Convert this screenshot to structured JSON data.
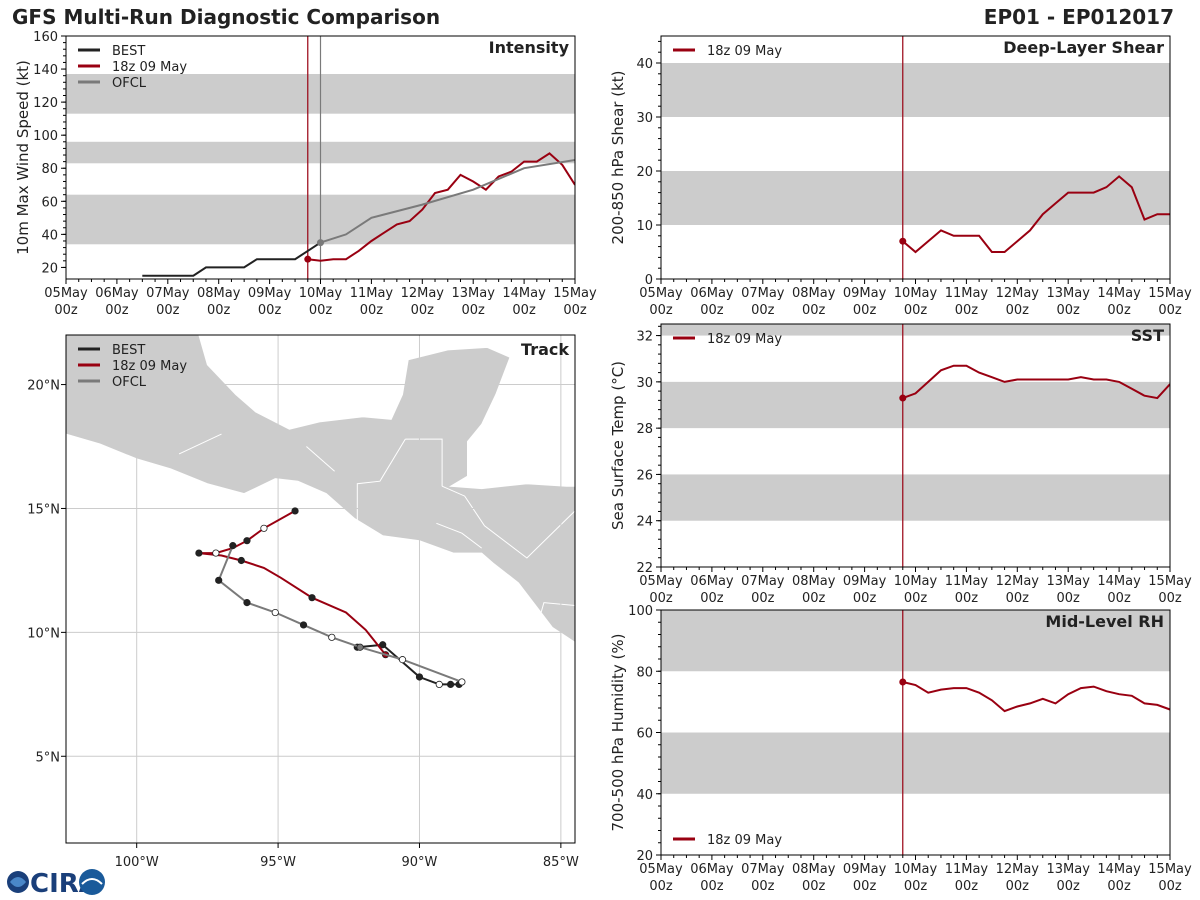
{
  "header": {
    "title": "GFS Multi-Run Diagnostic Comparison",
    "storm_id": "EP01 - EP012017"
  },
  "logo": {
    "text": "CIRA"
  },
  "colors": {
    "best": "#222222",
    "run": "#990011",
    "ofcl": "#7a7a7a",
    "band": "#cccccc",
    "land": "#cccccc",
    "grid": "#cccccc",
    "axis": "#000000"
  },
  "time_axis": {
    "ticks": [
      "05May",
      "06May",
      "07May",
      "08May",
      "09May",
      "10May",
      "11May",
      "12May",
      "13May",
      "14May",
      "15May"
    ],
    "hour_label": "00z",
    "xlim_days": [
      0,
      10
    ],
    "init_day": 4.75
  },
  "chart_data": [
    {
      "id": "intensity",
      "type": "line",
      "title": "Intensity",
      "ylabel": "10m Max Wind Speed (kt)",
      "ylim": [
        13,
        160
      ],
      "yticks": [
        20,
        40,
        60,
        80,
        100,
        120,
        140,
        160
      ],
      "bands": [
        [
          34,
          64
        ],
        [
          83,
          96
        ],
        [
          113,
          137
        ]
      ],
      "init_lines": [
        4.75,
        5.0
      ],
      "legend": [
        "BEST",
        "18z 09 May",
        "OFCL"
      ],
      "series": [
        {
          "name": "BEST",
          "color": "best",
          "x": [
            1.5,
            1.75,
            2.0,
            2.25,
            2.5,
            2.75,
            3.0,
            3.25,
            3.5,
            3.75,
            4.0,
            4.25,
            4.5,
            4.75,
            5.0
          ],
          "y": [
            15,
            15,
            15,
            15,
            15,
            20,
            20,
            20,
            20,
            25,
            25,
            25,
            25,
            30,
            35
          ]
        },
        {
          "name": "18z 09 May",
          "color": "run",
          "marker_start": true,
          "x": [
            4.75,
            5.0,
            5.25,
            5.5,
            5.75,
            6.0,
            6.25,
            6.5,
            6.75,
            7.0,
            7.25,
            7.5,
            7.75,
            8.0,
            8.25,
            8.5,
            8.75,
            9.0,
            9.25,
            9.5,
            9.75,
            10.0
          ],
          "y": [
            25,
            24,
            25,
            25,
            30,
            36,
            41,
            46,
            48,
            55,
            65,
            67,
            76,
            72,
            67,
            75,
            78,
            84,
            84,
            89,
            82,
            70
          ]
        },
        {
          "name": "OFCL",
          "color": "ofcl",
          "marker_start": true,
          "x": [
            5.0,
            5.5,
            6.0,
            7.0,
            8.0,
            9.0,
            10.0
          ],
          "y": [
            35,
            40,
            50,
            58,
            67,
            80,
            85
          ]
        }
      ]
    },
    {
      "id": "shear",
      "type": "line",
      "title": "Deep-Layer Shear",
      "ylabel": "200-850 hPa Shear (kt)",
      "ylim": [
        0,
        45
      ],
      "yticks": [
        0,
        10,
        20,
        30,
        40
      ],
      "bands": [
        [
          10,
          20
        ],
        [
          30,
          40
        ]
      ],
      "init_lines": [
        4.75
      ],
      "legend": [
        "18z 09 May"
      ],
      "series": [
        {
          "name": "18z 09 May",
          "color": "run",
          "marker_start": true,
          "x": [
            4.75,
            5.0,
            5.25,
            5.5,
            5.75,
            6.0,
            6.25,
            6.5,
            6.75,
            7.0,
            7.25,
            7.5,
            7.75,
            8.0,
            8.25,
            8.5,
            8.75,
            9.0,
            9.25,
            9.5,
            9.75,
            10.0
          ],
          "y": [
            7,
            5,
            7,
            9,
            8,
            8,
            8,
            5,
            5,
            7,
            9,
            12,
            14,
            16,
            16,
            16,
            17,
            19,
            17,
            11,
            12,
            12
          ]
        }
      ]
    },
    {
      "id": "sst",
      "type": "line",
      "title": "SST",
      "ylabel": "Sea Surface Temp (°C)",
      "ylim": [
        22,
        32.5
      ],
      "yticks": [
        22,
        24,
        26,
        28,
        30,
        32
      ],
      "bands": [
        [
          24,
          26
        ],
        [
          28,
          30
        ],
        [
          32,
          32.5
        ]
      ],
      "init_lines": [
        4.75
      ],
      "legend": [
        "18z 09 May"
      ],
      "series": [
        {
          "name": "18z 09 May",
          "color": "run",
          "marker_start": true,
          "x": [
            4.75,
            5.0,
            5.25,
            5.5,
            5.75,
            6.0,
            6.25,
            6.5,
            6.75,
            7.0,
            7.25,
            7.5,
            7.75,
            8.0,
            8.25,
            8.5,
            8.75,
            9.0,
            9.25,
            9.5,
            9.75,
            10.0
          ],
          "y": [
            29.3,
            29.5,
            30.0,
            30.5,
            30.7,
            30.7,
            30.4,
            30.2,
            30.0,
            30.1,
            30.1,
            30.1,
            30.1,
            30.1,
            30.2,
            30.1,
            30.1,
            30.0,
            29.7,
            29.4,
            29.3,
            29.9
          ]
        }
      ]
    },
    {
      "id": "rh",
      "type": "line",
      "title": "Mid-Level RH",
      "ylabel": "700-500 hPa Humidity (%)",
      "ylim": [
        20,
        100
      ],
      "yticks": [
        20,
        40,
        60,
        80,
        100
      ],
      "bands": [
        [
          40,
          60
        ],
        [
          80,
          100
        ]
      ],
      "init_lines": [
        4.75
      ],
      "legend": [
        "18z 09 May"
      ],
      "legend_position": "bottom-left",
      "series": [
        {
          "name": "18z 09 May",
          "color": "run",
          "marker_start": true,
          "x": [
            4.75,
            5.0,
            5.25,
            5.5,
            5.75,
            6.0,
            6.25,
            6.5,
            6.75,
            7.0,
            7.25,
            7.5,
            7.75,
            8.0,
            8.25,
            8.5,
            8.75,
            9.0,
            9.25,
            9.5,
            9.75,
            10.0
          ],
          "y": [
            76.5,
            75.5,
            73,
            74,
            74.5,
            74.5,
            73,
            70.5,
            67,
            68.5,
            69.5,
            71,
            69.5,
            72.5,
            74.5,
            75,
            73.5,
            72.5,
            72,
            69.5,
            69,
            67.5
          ]
        }
      ]
    },
    {
      "id": "track",
      "type": "scatter",
      "title": "Track",
      "xlim": [
        -102.5,
        -84.5
      ],
      "ylim": [
        1.5,
        22.0
      ],
      "xticks": [
        -100,
        -95,
        -90,
        -85
      ],
      "xtick_labels": [
        "100°W",
        "95°W",
        "90°W",
        "85°W"
      ],
      "yticks": [
        5,
        10,
        15,
        20
      ],
      "ytick_labels": [
        "5°N",
        "10°N",
        "15°N",
        "20°N"
      ],
      "legend": [
        "BEST",
        "18z 09 May",
        "OFCL"
      ],
      "series": [
        {
          "name": "BEST",
          "color": "best",
          "lon": [
            -88.6,
            -88.9,
            -89.3,
            -90.0,
            -91.3,
            -92.2
          ],
          "lat": [
            7.9,
            7.9,
            7.9,
            8.2,
            9.5,
            9.4
          ],
          "markers": [
            "filled",
            "filled",
            "open",
            "filled",
            "filled",
            "filled"
          ]
        },
        {
          "name": "18z 09 May",
          "color": "run",
          "lon": [
            -91.2,
            -91.9,
            -92.6,
            -93.8,
            -94.9,
            -95.5,
            -96.3,
            -97.0,
            -97.8,
            -97.2,
            -96.6,
            -96.1,
            -95.5,
            -94.4
          ],
          "lat": [
            9.1,
            10.1,
            10.8,
            11.4,
            12.2,
            12.6,
            12.9,
            13.1,
            13.2,
            13.2,
            13.4,
            13.7,
            14.2,
            14.9
          ],
          "markers": [
            "filled",
            "none",
            "none",
            "filled",
            "none",
            "none",
            "filled",
            "none",
            "filled",
            "open",
            "none",
            "filled",
            "open",
            "filled"
          ]
        },
        {
          "name": "OFCL",
          "color": "ofcl",
          "lon": [
            -88.5,
            -90.6,
            -92.1,
            -93.1,
            -94.1,
            -95.1,
            -96.1,
            -97.1,
            -96.6
          ],
          "lat": [
            8.0,
            8.9,
            9.4,
            9.8,
            10.3,
            10.8,
            11.2,
            12.1,
            13.5
          ],
          "markers": [
            "open",
            "open",
            "grey",
            "open",
            "filled",
            "open",
            "filled",
            "filled",
            "filled"
          ]
        }
      ]
    }
  ]
}
